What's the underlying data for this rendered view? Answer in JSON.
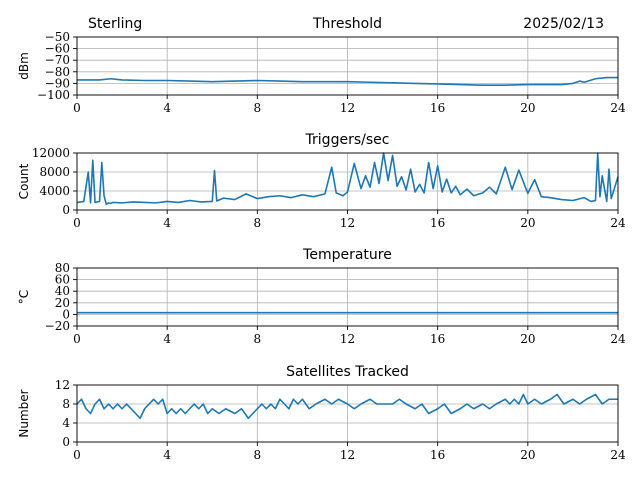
{
  "header": {
    "station": "Sterling",
    "date": "2025/02/13"
  },
  "style": {
    "line_color": "#1f77b4",
    "grid_color": "#b0b0b0"
  },
  "chart_data": [
    {
      "id": "threshold",
      "type": "line",
      "title": "Threshold",
      "ylabel": "dBm",
      "xlim": [
        0,
        24
      ],
      "ylim": [
        -100,
        -50
      ],
      "xticks": [
        "0",
        "4",
        "8",
        "12",
        "16",
        "20",
        "24"
      ],
      "yticks": [
        "−50",
        "−60",
        "−70",
        "−80",
        "−90",
        "−100"
      ],
      "series": [
        {
          "x": [
            0,
            1,
            1.5,
            2,
            3,
            4,
            5,
            6,
            7,
            8,
            9,
            10,
            11,
            12,
            13,
            14,
            15,
            16,
            17,
            18,
            19,
            20,
            21,
            21.5,
            22,
            22.3,
            22.5,
            23,
            23.5,
            24
          ],
          "y": [
            -87,
            -87,
            -86,
            -87,
            -87.5,
            -87.5,
            -88,
            -88.5,
            -88,
            -87.5,
            -88,
            -88.5,
            -88.5,
            -88.5,
            -89,
            -89.5,
            -90,
            -90.5,
            -91,
            -91.5,
            -91.5,
            -91,
            -91,
            -91,
            -90,
            -88,
            -89,
            -86,
            -85,
            -85
          ]
        }
      ]
    },
    {
      "id": "triggers",
      "type": "line",
      "title": "Triggers/sec",
      "ylabel": "Count",
      "xlim": [
        0,
        24
      ],
      "ylim": [
        0,
        12000
      ],
      "xticks": [
        "0",
        "4",
        "8",
        "12",
        "16",
        "20",
        "24"
      ],
      "yticks": [
        "0",
        "4000",
        "8000",
        "12000"
      ],
      "series": [
        {
          "x": [
            0,
            0.3,
            0.5,
            0.6,
            0.7,
            0.8,
            1.0,
            1.1,
            1.2,
            1.3,
            1.4,
            1.5,
            1.6,
            2.0,
            2.5,
            3.0,
            3.5,
            4.0,
            4.5,
            5.0,
            5.5,
            6.0,
            6.1,
            6.2,
            6.5,
            7.0,
            7.5,
            8.0,
            8.5,
            9.0,
            9.5,
            10.0,
            10.5,
            11.0,
            11.3,
            11.5,
            11.8,
            12.0,
            12.3,
            12.6,
            12.8,
            13.0,
            13.2,
            13.4,
            13.6,
            13.8,
            14.0,
            14.2,
            14.4,
            14.6,
            14.8,
            15.0,
            15.2,
            15.4,
            15.6,
            15.8,
            16.0,
            16.2,
            16.4,
            16.6,
            16.8,
            17.0,
            17.3,
            17.6,
            18.0,
            18.3,
            18.6,
            19.0,
            19.3,
            19.6,
            20.0,
            20.3,
            20.6,
            21.0,
            21.5,
            22.0,
            22.5,
            22.8,
            23.0,
            23.1,
            23.2,
            23.3,
            23.5,
            23.6,
            23.7,
            24.0
          ],
          "y": [
            1600,
            1800,
            8000,
            1500,
            10500,
            1600,
            1800,
            10000,
            3000,
            1200,
            1500,
            1400,
            1600,
            1500,
            1700,
            1600,
            1500,
            1800,
            1600,
            2000,
            1700,
            1800,
            8300,
            1900,
            2500,
            2200,
            3400,
            2400,
            2800,
            3000,
            2600,
            3200,
            2800,
            3400,
            9000,
            3600,
            3000,
            3800,
            9800,
            4500,
            7200,
            4800,
            10000,
            5600,
            12000,
            6200,
            11500,
            5000,
            7000,
            4200,
            8600,
            3800,
            5400,
            3600,
            10000,
            4500,
            9300,
            3800,
            6500,
            3600,
            5000,
            3200,
            4400,
            3000,
            3600,
            4800,
            3400,
            9000,
            4300,
            8400,
            3500,
            6400,
            2800,
            2600,
            2200,
            2000,
            2600,
            1800,
            2000,
            12000,
            2800,
            7200,
            1800,
            8600,
            2400,
            7000
          ]
        }
      ]
    },
    {
      "id": "temperature",
      "type": "line",
      "title": "Temperature",
      "ylabel": "°C",
      "xlim": [
        0,
        24
      ],
      "ylim": [
        -20,
        80
      ],
      "xticks": [
        "0",
        "4",
        "8",
        "12",
        "16",
        "20",
        "24"
      ],
      "yticks": [
        "80",
        "60",
        "40",
        "20",
        "0",
        "−20"
      ],
      "series": [
        {
          "x": [
            0,
            24
          ],
          "y": [
            3,
            3
          ]
        }
      ]
    },
    {
      "id": "satellites",
      "type": "line",
      "title": "Satellites Tracked",
      "ylabel": "Number",
      "xlim": [
        0,
        24
      ],
      "ylim": [
        0,
        12
      ],
      "xticks": [
        "0",
        "4",
        "8",
        "12",
        "16",
        "20",
        "24"
      ],
      "yticks": [
        "0",
        "4",
        "8",
        "12"
      ],
      "series": [
        {
          "x": [
            0,
            0.2,
            0.4,
            0.6,
            0.8,
            1.0,
            1.2,
            1.4,
            1.6,
            1.8,
            2.0,
            2.2,
            2.4,
            2.6,
            2.8,
            3.0,
            3.2,
            3.4,
            3.6,
            3.8,
            4.0,
            4.2,
            4.4,
            4.6,
            4.8,
            5.0,
            5.2,
            5.4,
            5.6,
            5.8,
            6.0,
            6.3,
            6.6,
            7.0,
            7.3,
            7.6,
            7.8,
            8.0,
            8.2,
            8.4,
            8.6,
            8.8,
            9.0,
            9.2,
            9.4,
            9.6,
            9.8,
            10.0,
            10.3,
            10.6,
            11.0,
            11.3,
            11.6,
            12.0,
            12.3,
            12.6,
            13.0,
            13.3,
            13.6,
            14.0,
            14.3,
            14.6,
            15.0,
            15.3,
            15.6,
            16.0,
            16.3,
            16.6,
            17.0,
            17.3,
            17.6,
            18.0,
            18.3,
            18.6,
            19.0,
            19.2,
            19.4,
            19.6,
            19.8,
            20.0,
            20.3,
            20.6,
            21.0,
            21.3,
            21.6,
            22.0,
            22.3,
            22.6,
            23.0,
            23.3,
            23.6,
            24.0
          ],
          "y": [
            8,
            9,
            7,
            6,
            8,
            9,
            7,
            8,
            7,
            8,
            7,
            8,
            7,
            6,
            5,
            7,
            8,
            9,
            8,
            9,
            6,
            7,
            6,
            7,
            6,
            7,
            8,
            7,
            8,
            6,
            7,
            6,
            7,
            6,
            7,
            5,
            6,
            7,
            8,
            7,
            8,
            7,
            9,
            8,
            7,
            9,
            8,
            9,
            7,
            8,
            9,
            8,
            9,
            8,
            7,
            8,
            9,
            8,
            8,
            8,
            9,
            8,
            7,
            8,
            6,
            7,
            8,
            6,
            7,
            8,
            7,
            8,
            7,
            8,
            9,
            8,
            9,
            8,
            10,
            8,
            9,
            8,
            9,
            10,
            8,
            9,
            8,
            9,
            10,
            8,
            9,
            9
          ]
        }
      ]
    }
  ]
}
